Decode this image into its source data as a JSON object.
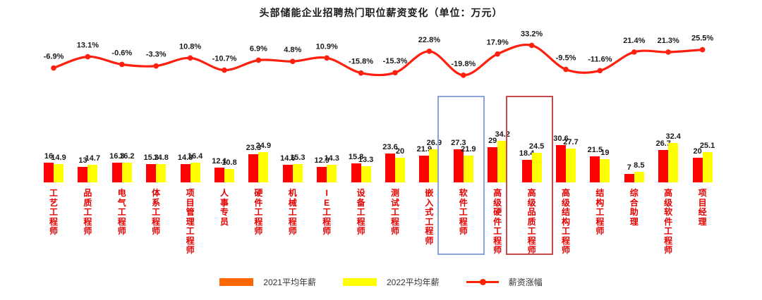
{
  "title": "头部储能企业招聘热门职位薪资变化（单位：万元）",
  "chart_data": {
    "type": "bar",
    "title": "头部储能企业招聘热门职位薪资变化（单位：万元）",
    "unit": "万元",
    "grid": false,
    "legend_position": "bottom",
    "categories": [
      "工艺工程师",
      "品质工程师",
      "电气工程师",
      "体系工程师",
      "项目管理工程师",
      "人事专员",
      "硬件工程师",
      "机械工程师",
      "IE工程师",
      "设备工程师",
      "测试工程师",
      "嵌入式工程师",
      "软件工程师",
      "高级硬件工程师",
      "高级品质工程师",
      "高级结构工程师",
      "结构工程师",
      "综合助理",
      "高级软件工程师",
      "项目经理"
    ],
    "series": [
      {
        "name": "2021平均年薪",
        "color": "#ff0000",
        "legend_color": "#ff6600",
        "values": [
          16,
          13,
          16.3,
          15.3,
          14.8,
          12.1,
          23.3,
          14.6,
          12.9,
          15.8,
          23.6,
          21.9,
          27.3,
          29,
          18.4,
          30.6,
          21.5,
          7,
          26.7,
          20
        ]
      },
      {
        "name": "2022平均年薪",
        "color": "#ffff00",
        "legend_color": "#ffff00",
        "values": [
          14.9,
          14.7,
          16.2,
          14.8,
          16.4,
          10.8,
          24.9,
          15.3,
          14.3,
          13.3,
          20,
          26.9,
          21.9,
          34.2,
          24.5,
          27.7,
          19,
          8.5,
          32.4,
          25.1
        ]
      }
    ],
    "line_series": {
      "name": "薪资涨幅",
      "color": "#ff1f0f",
      "unit": "%",
      "values": [
        -6.9,
        13.1,
        -0.6,
        -3.3,
        10.8,
        -10.7,
        6.9,
        4.8,
        10.9,
        -15.8,
        -15.3,
        22.8,
        -19.8,
        17.9,
        33.2,
        -9.5,
        -11.6,
        21.4,
        21.3,
        25.5
      ]
    },
    "highlights": [
      {
        "category": "软件工程师",
        "index": 12,
        "color": "#8ba3d9"
      },
      {
        "category": "高级品质工程师",
        "index": 14,
        "color": "#c94a4a"
      }
    ]
  },
  "legend": {
    "items": [
      {
        "label": "2021平均年薪",
        "swatch": "rect",
        "color": "#ff6600"
      },
      {
        "label": "2022平均年薪",
        "swatch": "rect",
        "color": "#ffff00"
      },
      {
        "label": "薪资涨幅",
        "swatch": "line-marker",
        "color": "#ff2200"
      }
    ]
  }
}
